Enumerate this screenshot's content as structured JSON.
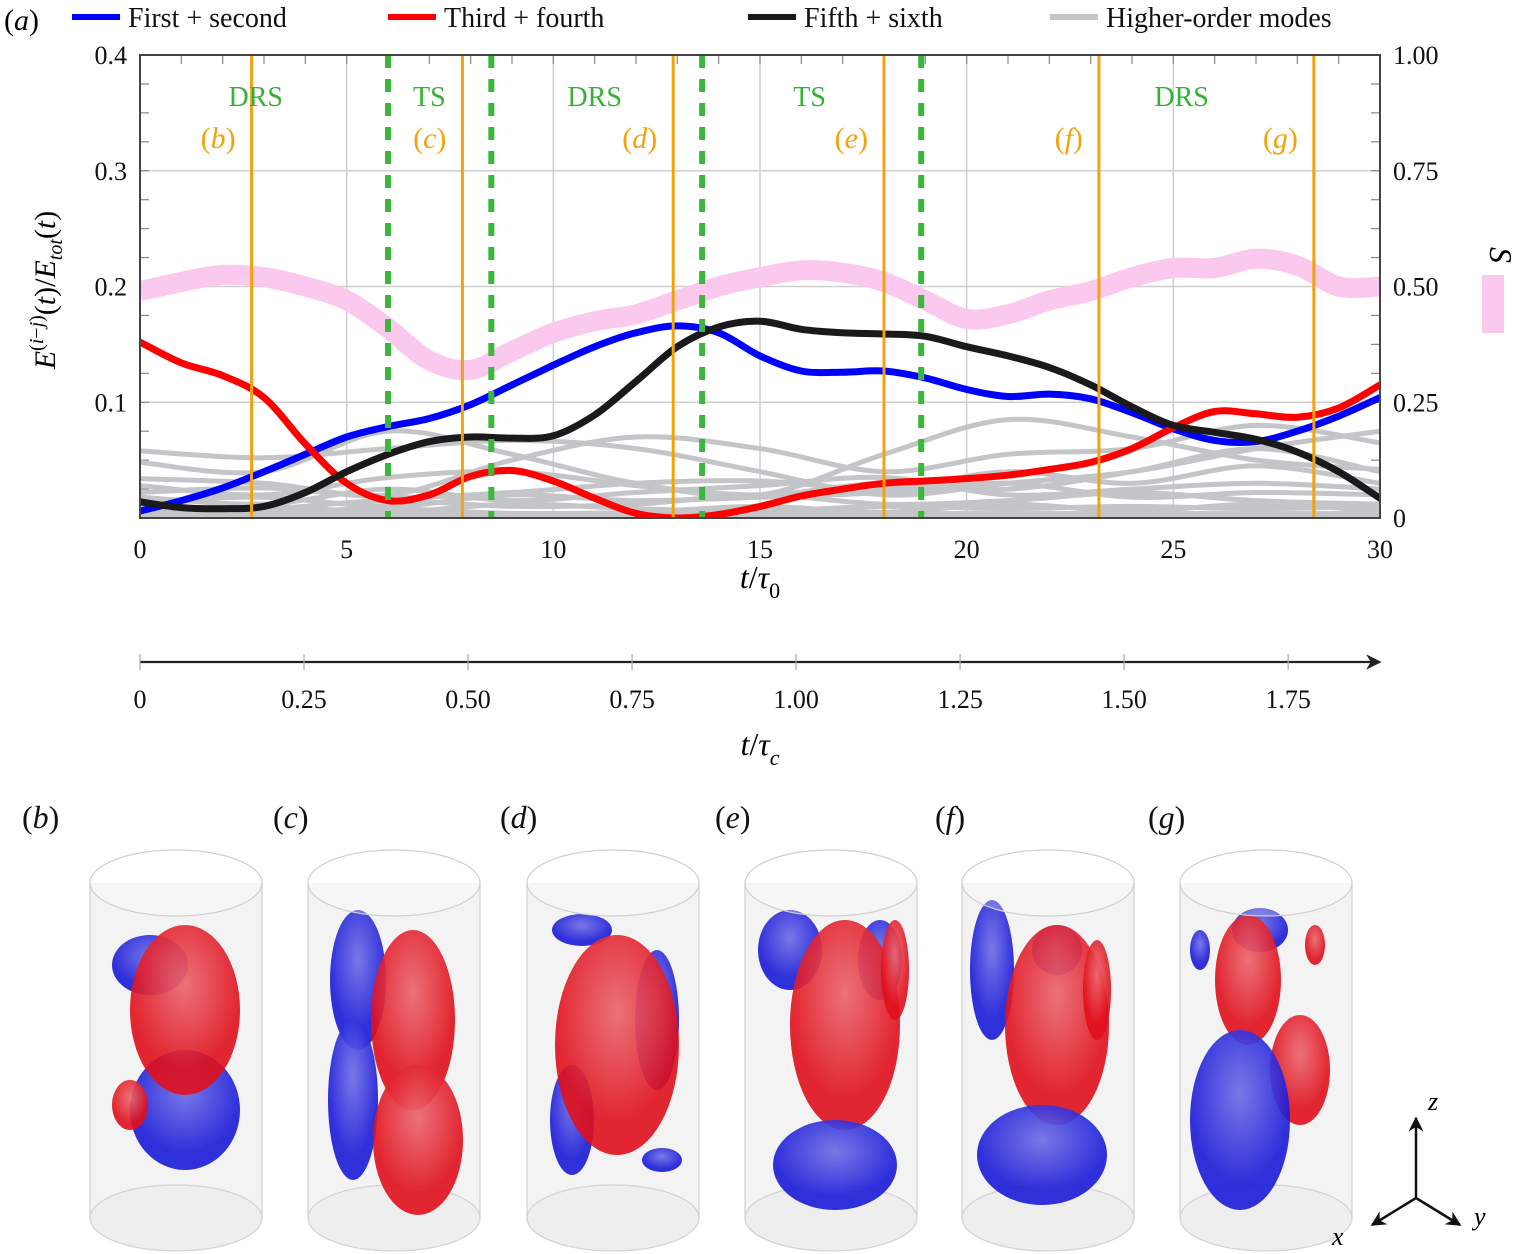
{
  "figure": {
    "panel_label_a": "(a)",
    "colors": {
      "first_second": "#0000ff",
      "third_fourth": "#ff0000",
      "fifth_sixth": "#1a1a1a",
      "higher_order": "#c4c5c8",
      "S": "#fbc8ee",
      "snapshot_marker": "#f2a20c",
      "regime_boundary": "#3bb83b",
      "regime_text": "#35b135",
      "grid": "#cfcfcf",
      "axis": "#444444",
      "iso_positive": "#e0101c",
      "iso_negative": "#1b1bd8"
    }
  },
  "chart_data": {
    "type": "line",
    "title": "",
    "xlabel": "t/τ0",
    "ylabel": "E^(i−j)(t)/E_tot(t)",
    "y2label": "S",
    "xlim": [
      0,
      30
    ],
    "ylim": [
      0,
      0.4
    ],
    "y2lim": [
      0,
      1.0
    ],
    "grid": true,
    "legend_position": "top",
    "x_ticks": [
      0,
      5,
      10,
      15,
      20,
      25,
      30
    ],
    "x_tick_labels": [
      "0",
      "5",
      "10",
      "15",
      "20",
      "25",
      "30"
    ],
    "y_ticks": [
      0.1,
      0.2,
      0.3,
      0.4
    ],
    "y_tick_labels": [
      "0.1",
      "0.2",
      "0.3",
      "0.4"
    ],
    "y2_ticks": [
      0,
      0.25,
      0.5,
      0.75,
      1.0
    ],
    "y2_tick_labels": [
      "0",
      "0.25",
      "0.50",
      "0.75",
      "1.00"
    ],
    "secondary_x_axis": {
      "label": "t/τc",
      "ticks": [
        0,
        0.25,
        0.5,
        0.75,
        1.0,
        1.25,
        1.5,
        1.75
      ],
      "tick_labels": [
        "0",
        "0.25",
        "0.50",
        "0.75",
        "1.00",
        "1.25",
        "1.50",
        "1.75"
      ],
      "range": [
        0,
        1.89
      ]
    },
    "legend": [
      {
        "name": "First + second",
        "key": "first_second"
      },
      {
        "name": "Third + fourth",
        "key": "third_fourth"
      },
      {
        "name": "Fifth + sixth",
        "key": "fifth_sixth"
      },
      {
        "name": "Higher-order modes",
        "key": "higher_order"
      }
    ],
    "series": [
      {
        "name": "First + second",
        "key": "first_second",
        "axis": "left",
        "x": [
          0,
          1,
          2,
          3,
          4,
          5,
          6,
          7,
          8,
          9,
          10,
          11,
          12,
          13,
          14,
          15,
          16,
          17,
          18,
          19,
          20,
          21,
          22,
          23,
          24,
          25,
          26,
          27,
          28,
          29,
          30
        ],
        "values": [
          0.006,
          0.015,
          0.026,
          0.04,
          0.055,
          0.07,
          0.079,
          0.086,
          0.098,
          0.115,
          0.132,
          0.148,
          0.16,
          0.166,
          0.16,
          0.14,
          0.127,
          0.126,
          0.127,
          0.121,
          0.111,
          0.105,
          0.107,
          0.103,
          0.091,
          0.077,
          0.067,
          0.066,
          0.075,
          0.088,
          0.104
        ]
      },
      {
        "name": "Third + fourth",
        "key": "third_fourth",
        "axis": "left",
        "x": [
          0,
          1,
          2,
          3,
          4,
          5,
          6,
          7,
          8,
          9,
          10,
          11,
          12,
          13,
          14,
          15,
          16,
          17,
          18,
          19,
          20,
          21,
          22,
          23,
          24,
          25,
          26,
          27,
          28,
          29,
          30
        ],
        "values": [
          0.152,
          0.134,
          0.123,
          0.104,
          0.064,
          0.03,
          0.015,
          0.02,
          0.036,
          0.041,
          0.032,
          0.017,
          0.004,
          0.0,
          0.003,
          0.01,
          0.019,
          0.025,
          0.03,
          0.032,
          0.034,
          0.037,
          0.042,
          0.048,
          0.06,
          0.078,
          0.092,
          0.09,
          0.087,
          0.095,
          0.115
        ]
      },
      {
        "name": "Fifth + sixth",
        "key": "fifth_sixth",
        "axis": "left",
        "x": [
          0,
          1,
          2,
          3,
          4,
          5,
          6,
          7,
          8,
          9,
          10,
          11,
          12,
          13,
          14,
          15,
          16,
          17,
          18,
          19,
          20,
          21,
          22,
          23,
          24,
          25,
          26,
          27,
          28,
          29,
          30
        ],
        "values": [
          0.014,
          0.009,
          0.008,
          0.01,
          0.022,
          0.04,
          0.055,
          0.066,
          0.07,
          0.069,
          0.071,
          0.089,
          0.118,
          0.148,
          0.165,
          0.17,
          0.163,
          0.16,
          0.159,
          0.157,
          0.148,
          0.14,
          0.13,
          0.115,
          0.096,
          0.08,
          0.074,
          0.068,
          0.057,
          0.04,
          0.017
        ]
      },
      {
        "name": "S",
        "key": "S",
        "axis": "right",
        "x": [
          0,
          1,
          2,
          3,
          4,
          5,
          6,
          7,
          8,
          9,
          10,
          11,
          12,
          13,
          14,
          15,
          16,
          17,
          18,
          19,
          20,
          21,
          22,
          23,
          24,
          25,
          26,
          27,
          28,
          29,
          30
        ],
        "values": [
          0.49,
          0.51,
          0.525,
          0.52,
          0.5,
          0.47,
          0.41,
          0.34,
          0.32,
          0.36,
          0.4,
          0.425,
          0.44,
          0.47,
          0.5,
          0.52,
          0.535,
          0.53,
          0.51,
          0.47,
          0.43,
          0.44,
          0.47,
          0.49,
          0.52,
          0.54,
          0.54,
          0.56,
          0.545,
          0.5,
          0.5
        ]
      }
    ],
    "higher_order_modes": {
      "name": "Higher-order modes",
      "key": "higher_order",
      "axis": "left",
      "x": [
        0,
        3,
        6,
        9,
        12,
        15,
        18,
        21,
        24,
        27,
        30
      ],
      "curves": [
        [
          0.058,
          0.052,
          0.06,
          0.067,
          0.06,
          0.04,
          0.02,
          0.03,
          0.04,
          0.06,
          0.075
        ],
        [
          0.048,
          0.04,
          0.075,
          0.055,
          0.03,
          0.02,
          0.055,
          0.085,
          0.07,
          0.05,
          0.042
        ],
        [
          0.034,
          0.03,
          0.02,
          0.05,
          0.07,
          0.06,
          0.04,
          0.055,
          0.06,
          0.08,
          0.065
        ],
        [
          0.028,
          0.02,
          0.035,
          0.04,
          0.028,
          0.02,
          0.03,
          0.025,
          0.04,
          0.06,
          0.04
        ],
        [
          0.022,
          0.026,
          0.018,
          0.022,
          0.03,
          0.032,
          0.025,
          0.04,
          0.03,
          0.045,
          0.03
        ],
        [
          0.018,
          0.012,
          0.025,
          0.015,
          0.022,
          0.028,
          0.035,
          0.02,
          0.025,
          0.03,
          0.025
        ],
        [
          0.014,
          0.018,
          0.01,
          0.02,
          0.015,
          0.018,
          0.022,
          0.03,
          0.018,
          0.022,
          0.02
        ],
        [
          0.01,
          0.008,
          0.015,
          0.01,
          0.012,
          0.02,
          0.012,
          0.015,
          0.022,
          0.015,
          0.012
        ],
        [
          0.007,
          0.01,
          0.005,
          0.012,
          0.008,
          0.006,
          0.01,
          0.008,
          0.01,
          0.008,
          0.01
        ],
        [
          0.004,
          0.005,
          0.008,
          0.004,
          0.005,
          0.01,
          0.005,
          0.012,
          0.006,
          0.012,
          0.006
        ]
      ]
    },
    "snapshot_markers": [
      {
        "label": "b",
        "t": 2.7
      },
      {
        "label": "c",
        "t": 7.8
      },
      {
        "label": "d",
        "t": 12.9
      },
      {
        "label": "e",
        "t": 18.0
      },
      {
        "label": "f",
        "t": 23.2
      },
      {
        "label": "g",
        "t": 28.4
      }
    ],
    "regime_boundaries": [
      6.0,
      8.5,
      13.6,
      18.9
    ],
    "regime_labels": [
      {
        "text": "DRS",
        "t": 2.8
      },
      {
        "text": "TS",
        "t": 7.0
      },
      {
        "text": "DRS",
        "t": 11.0
      },
      {
        "text": "TS",
        "t": 16.2
      },
      {
        "text": "DRS",
        "t": 25.2
      }
    ]
  },
  "snapshots": [
    {
      "label": "(b)",
      "letter": "b"
    },
    {
      "label": "(c)",
      "letter": "c"
    },
    {
      "label": "(d)",
      "letter": "d"
    },
    {
      "label": "(e)",
      "letter": "e"
    },
    {
      "label": "(f)",
      "letter": "f"
    },
    {
      "label": "(g)",
      "letter": "g"
    }
  ],
  "axes_triad": {
    "x": "x",
    "y": "y",
    "z": "z"
  }
}
